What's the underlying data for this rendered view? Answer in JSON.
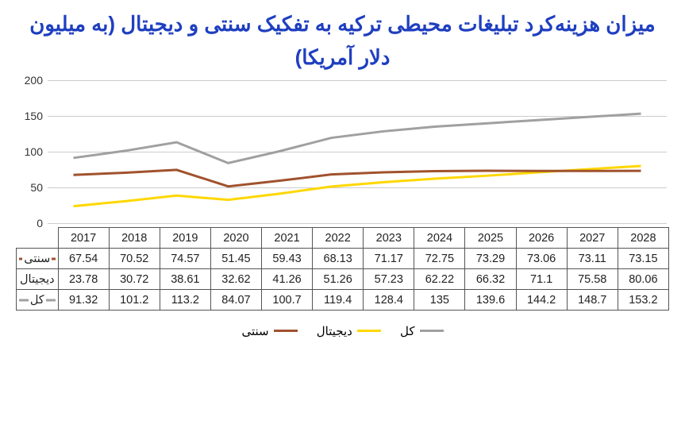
{
  "title": "میزان هزینه‌کرد تبلیغات محیطی ترکیه به تفکیک سنتی و دیجیتال (به میلیون دلار آمریکا)",
  "chart": {
    "type": "line",
    "years": [
      "2017",
      "2018",
      "2019",
      "2020",
      "2021",
      "2022",
      "2023",
      "2024",
      "2025",
      "2026",
      "2027",
      "2028"
    ],
    "ylim": [
      0,
      200
    ],
    "ytick_step": 50,
    "yticks": [
      "0",
      "50",
      "100",
      "150",
      "200"
    ],
    "background_color": "#ffffff",
    "grid_color": "#cccccc",
    "axis_color": "#888888",
    "line_width": 3,
    "series": {
      "traditional": {
        "label": "سنتی",
        "color": "#a0522d",
        "values": [
          67.54,
          70.52,
          74.57,
          51.45,
          59.43,
          68.13,
          71.17,
          72.75,
          73.29,
          73.06,
          73.11,
          73.15
        ]
      },
      "digital": {
        "label": "دیجیتال",
        "color": "#ffd700",
        "values": [
          23.78,
          30.72,
          38.61,
          32.62,
          41.26,
          51.26,
          57.23,
          62.22,
          66.32,
          71.1,
          75.58,
          80.06
        ]
      },
      "total": {
        "label": "کل",
        "color": "#a0a0a0",
        "values": [
          91.32,
          101.2,
          113.2,
          84.07,
          100.7,
          119.4,
          128.4,
          135,
          139.6,
          144.2,
          148.7,
          153.2
        ]
      }
    },
    "table_rows": [
      {
        "key": "traditional",
        "cells": [
          "67.54",
          "70.52",
          "74.57",
          "51.45",
          "59.43",
          "68.13",
          "71.17",
          "72.75",
          "73.29",
          "73.06",
          "73.11",
          "73.15"
        ]
      },
      {
        "key": "digital",
        "cells": [
          "23.78",
          "30.72",
          "38.61",
          "32.62",
          "41.26",
          "51.26",
          "57.23",
          "62.22",
          "66.32",
          "71.1",
          "75.58",
          "80.06"
        ]
      },
      {
        "key": "total",
        "cells": [
          "91.32",
          "101.2",
          "113.2",
          "84.07",
          "100.7",
          "119.4",
          "128.4",
          "135",
          "139.6",
          "144.2",
          "148.7",
          "153.2"
        ]
      }
    ]
  }
}
